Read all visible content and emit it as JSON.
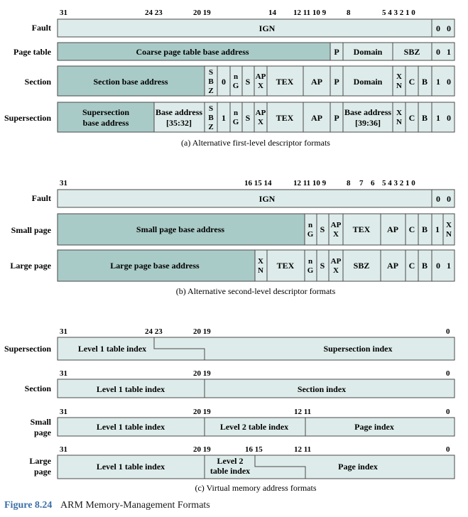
{
  "colors": {
    "dark": "#a9cbc8",
    "light": "#ddecea",
    "border": "#4a4a4a"
  },
  "first_level": {
    "caption": "(a) Alternative first-level descriptor formats",
    "bits": [
      "31",
      "24 23",
      "20 19",
      "14",
      "12 11 10 9",
      "8",
      "5 4 3 2 1 0"
    ],
    "rows": [
      {
        "label": "Fault",
        "fields": [
          "IGN",
          "0",
          "0"
        ]
      },
      {
        "label": "Page table",
        "fields": [
          "Coarse page table base address",
          "P",
          "Domain",
          "SBZ",
          "0",
          "1"
        ]
      },
      {
        "label": "Section",
        "fields": [
          "Section base address",
          "S",
          "B",
          "Z",
          "0",
          "n",
          "G",
          "S",
          "AP",
          "X",
          "TEX",
          "AP",
          "P",
          "Domain",
          "X",
          "N",
          "C",
          "B",
          "1",
          "0"
        ]
      },
      {
        "label": "Supersection",
        "fields": [
          "Supersection",
          "base address",
          "Base address",
          "[35:32]",
          "S",
          "B",
          "Z",
          "1",
          "n",
          "G",
          "S",
          "AP",
          "X",
          "TEX",
          "AP",
          "P",
          "Base address",
          "[39:36]",
          "X",
          "N",
          "C",
          "B",
          "1",
          "0"
        ]
      }
    ]
  },
  "second_level": {
    "caption": "(b) Alternative second-level descriptor formats",
    "bits": [
      "31",
      "16 15 14",
      "12 11 10 9",
      "8",
      "7",
      "6",
      "5 4 3 2 1 0"
    ],
    "rows": [
      {
        "label": "Fault",
        "fields": [
          "IGN",
          "0",
          "0"
        ]
      },
      {
        "label": "Small page",
        "fields": [
          "Small page base address",
          "n",
          "G",
          "S",
          "AP",
          "X",
          "TEX",
          "AP",
          "C",
          "B",
          "1",
          "X",
          "N"
        ]
      },
      {
        "label": "Large page",
        "fields": [
          "Large page base address",
          "X",
          "N",
          "TEX",
          "n",
          "G",
          "S",
          "AP",
          "X",
          "SBZ",
          "AP",
          "C",
          "B",
          "0",
          "1"
        ]
      }
    ]
  },
  "virtual": {
    "caption": "(c) Virtual memory address formats",
    "rows": [
      {
        "label": "Supersection",
        "bits": [
          "31",
          "24 23",
          "20 19",
          "0"
        ],
        "fields": [
          "Level 1 table index",
          "Supersection index"
        ]
      },
      {
        "label": "Section",
        "bits": [
          "31",
          "20 19",
          "0"
        ],
        "fields": [
          "Level 1 table index",
          "Section index"
        ]
      },
      {
        "label": "Small",
        "label2": "page",
        "bits": [
          "31",
          "20 19",
          "12 11",
          "0"
        ],
        "fields": [
          "Level 1 table index",
          "Level 2 table index",
          "Page index"
        ]
      },
      {
        "label": "Large",
        "label2": "page",
        "bits": [
          "31",
          "20 19",
          "16 15",
          "12 11",
          "0"
        ],
        "fields": [
          "Level 1 table index",
          "Level 2",
          "table index",
          "Page index"
        ]
      }
    ]
  },
  "figure": {
    "number": "Figure 8.24",
    "title": "ARM Memory-Management Formats"
  }
}
